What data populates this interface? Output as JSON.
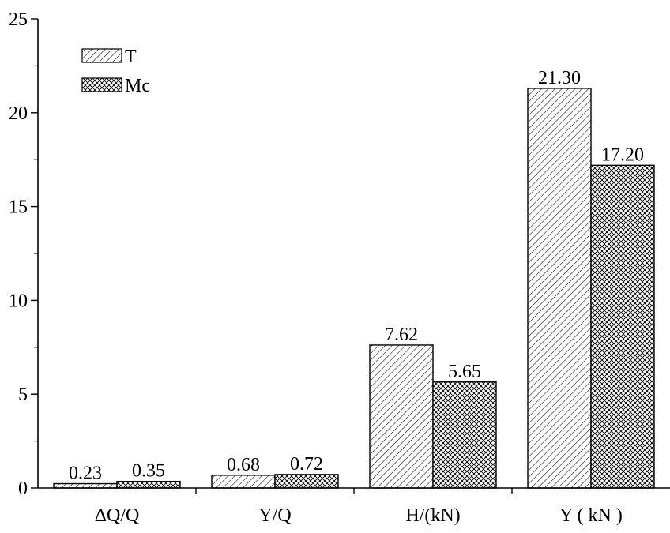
{
  "chart_data": {
    "type": "bar",
    "categories": [
      "ΔQ/Q",
      "Y/Q",
      "H/(kN)",
      "Y ( kN )"
    ],
    "series": [
      {
        "name": "T",
        "pattern": "diagonal-hatch",
        "values": [
          0.23,
          0.68,
          7.62,
          21.3
        ],
        "labels": [
          "0.23",
          "0.68",
          "7.62",
          "21.30"
        ]
      },
      {
        "name": "Mc",
        "pattern": "cross-hatch",
        "values": [
          0.35,
          0.72,
          5.65,
          17.2
        ],
        "labels": [
          "0.35",
          "0.72",
          "5.65",
          "17.20"
        ]
      }
    ],
    "ylim": [
      0,
      25
    ],
    "yticks": [
      0,
      5,
      10,
      15,
      20,
      25
    ],
    "ytick_labels": [
      "0",
      "5",
      "10",
      "15",
      "20",
      "25"
    ],
    "legend_position": "top-left",
    "grid": false,
    "colors": {
      "bar_stroke": "#000000",
      "bar_fill": "#ffffff",
      "hatch": "#000000"
    }
  }
}
